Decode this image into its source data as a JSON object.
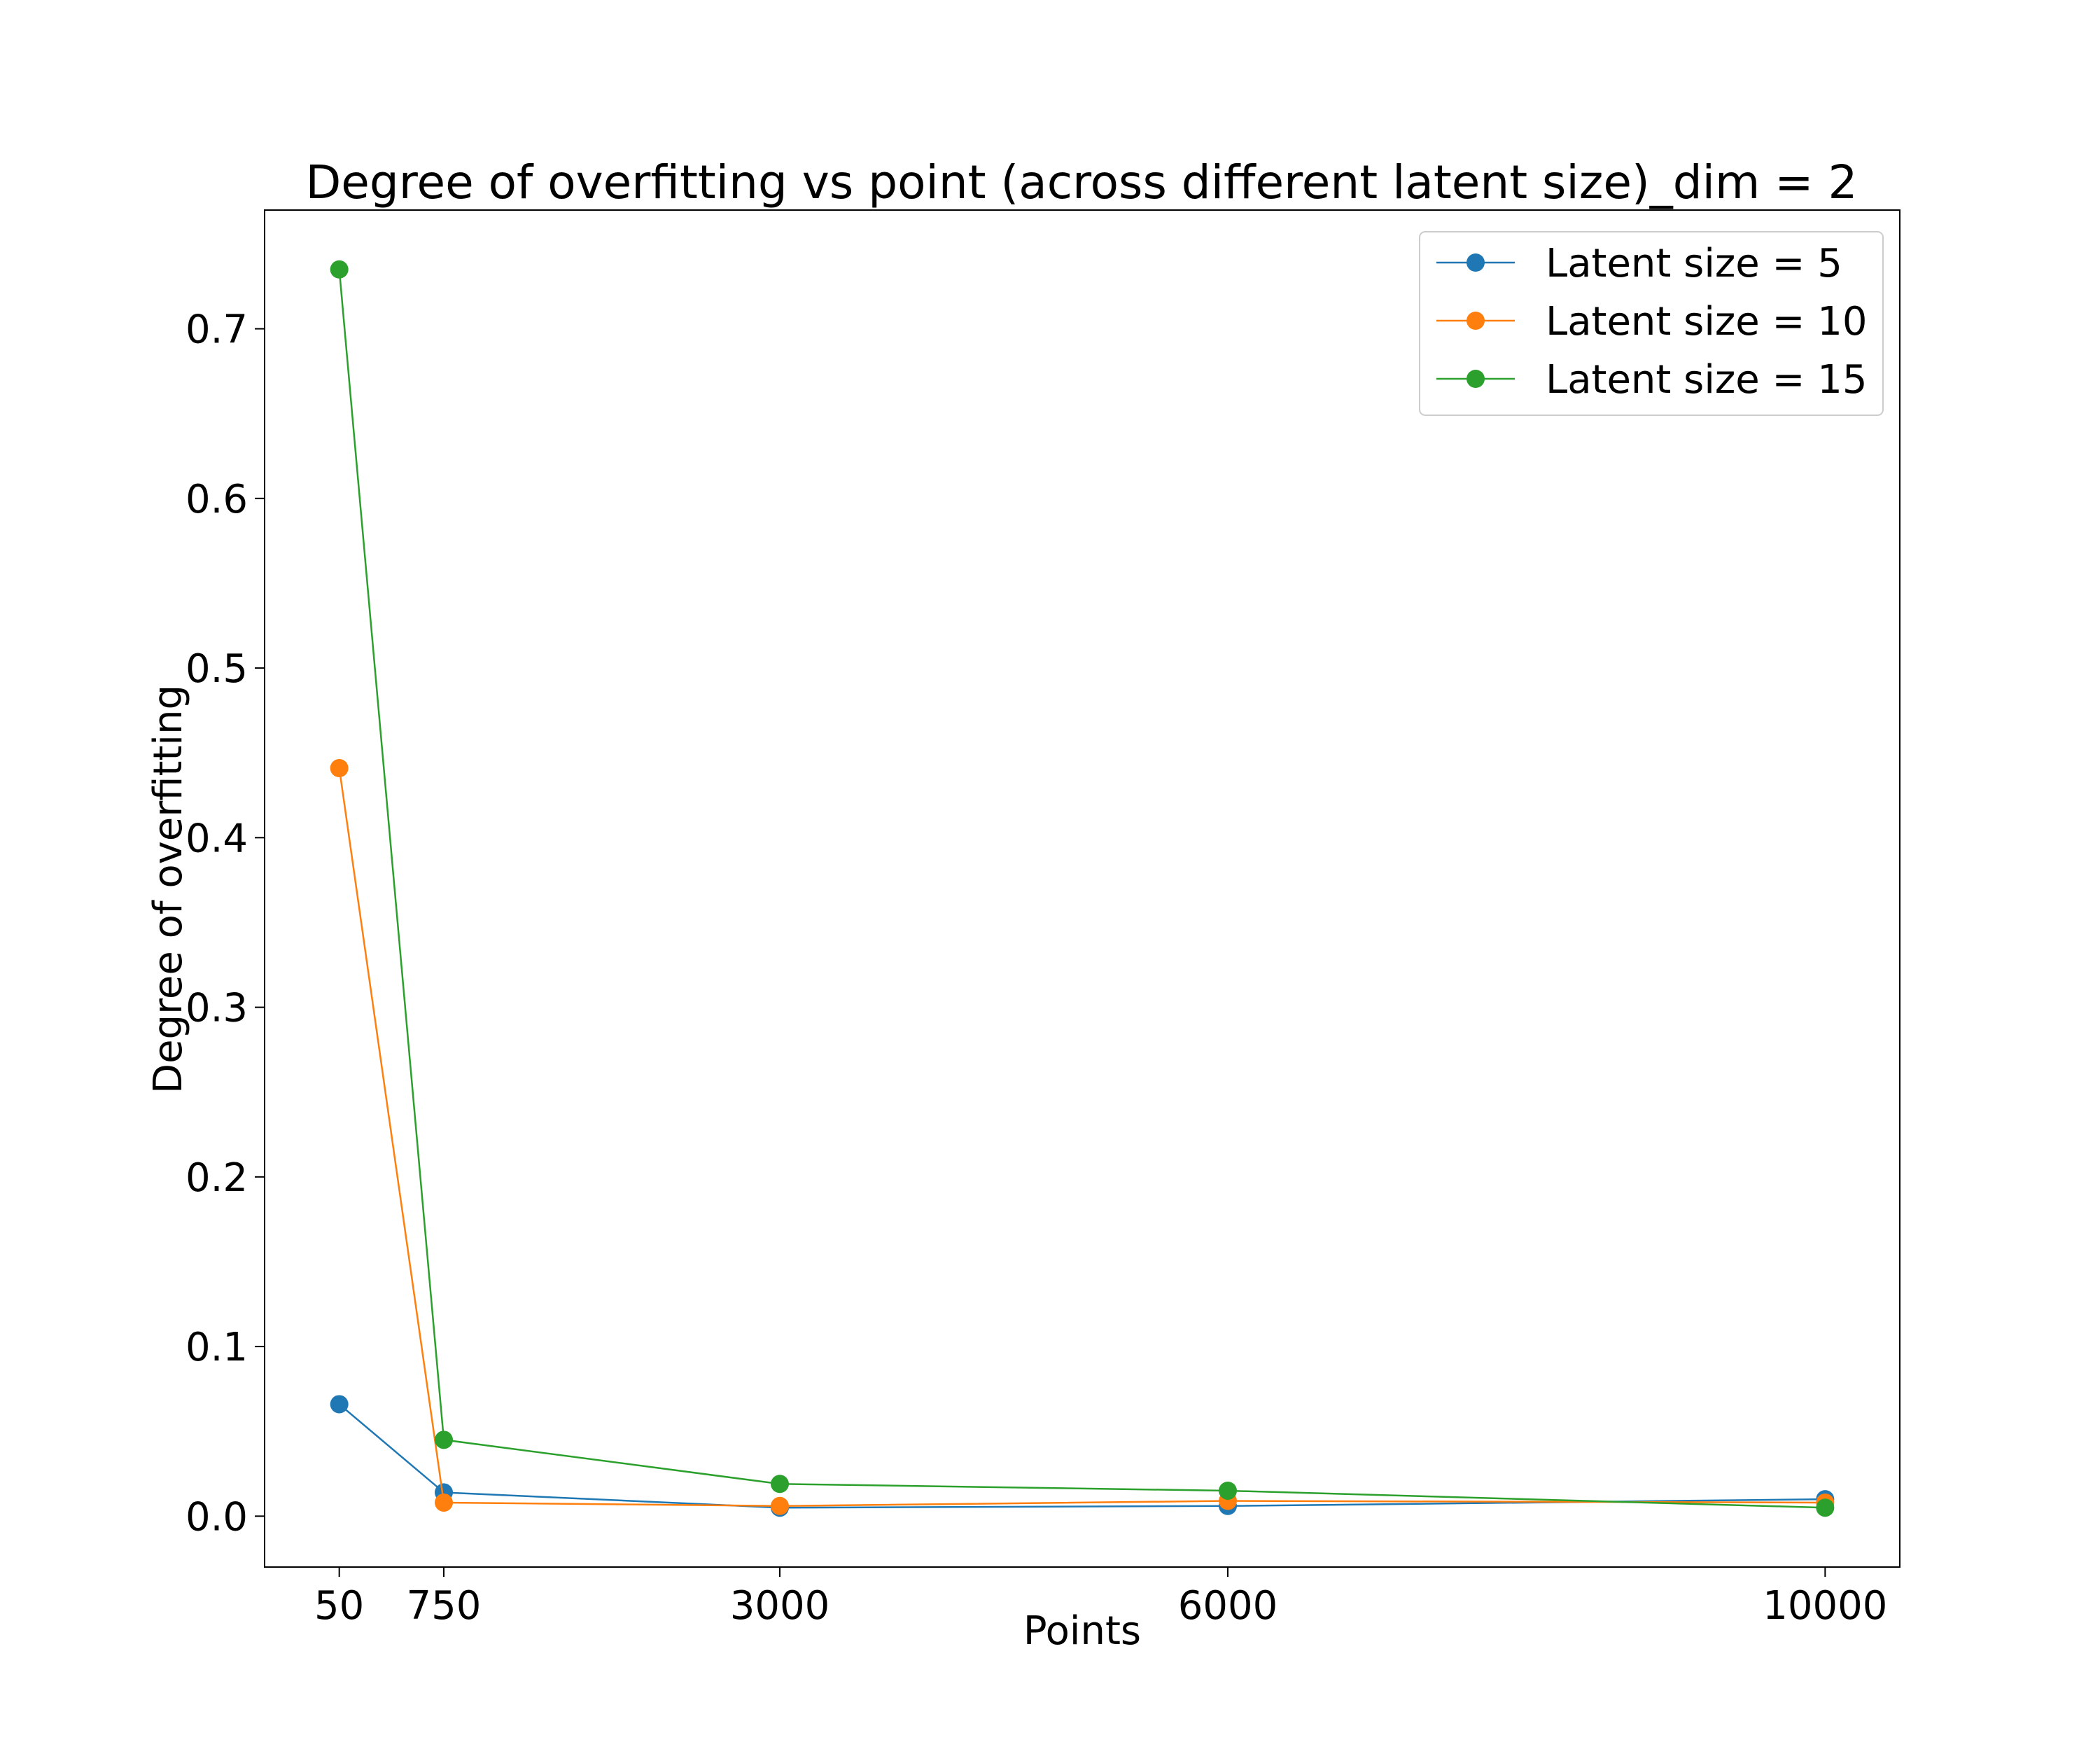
{
  "chart_data": {
    "type": "line",
    "title": "Degree of overfitting vs point (across different latent size)_dim = 2",
    "xlabel": "Points",
    "ylabel": "Degree of overfitting",
    "x": [
      50,
      750,
      3000,
      6000,
      10000
    ],
    "xticks": [
      50,
      750,
      3000,
      6000,
      10000
    ],
    "xlim": [
      -450,
      10500
    ],
    "yticks": [
      0.0,
      0.1,
      0.2,
      0.3,
      0.4,
      0.5,
      0.6,
      0.7
    ],
    "ytick_labels": [
      "0.0",
      "0.1",
      "0.2",
      "0.3",
      "0.4",
      "0.5",
      "0.6",
      "0.7"
    ],
    "ylim": [
      -0.03,
      0.77
    ],
    "grid": false,
    "legend_position": "upper right",
    "series": [
      {
        "name": "Latent size = 5",
        "color": "#1f77b4",
        "values": [
          0.066,
          0.014,
          0.005,
          0.006,
          0.01
        ]
      },
      {
        "name": "Latent size = 10",
        "color": "#ff7f0e",
        "values": [
          0.441,
          0.008,
          0.006,
          0.009,
          0.008
        ]
      },
      {
        "name": "Latent size = 15",
        "color": "#2ca02c",
        "values": [
          0.735,
          0.045,
          0.019,
          0.015,
          0.005
        ]
      }
    ]
  }
}
